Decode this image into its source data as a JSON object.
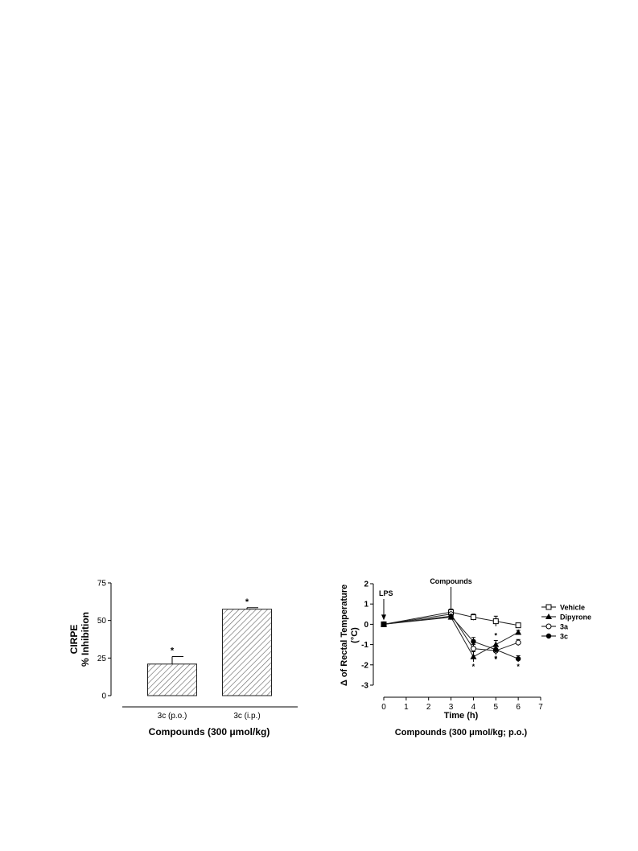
{
  "chart_data": [
    {
      "type": "bar",
      "categories": [
        "3c (p.o.)",
        "3c (i.p.)"
      ],
      "values": [
        21,
        57.5
      ],
      "errors": [
        5,
        1
      ],
      "significance": [
        "*",
        "*"
      ],
      "ylabel_line1": "CIRPE",
      "ylabel_line2": "% Inhibition",
      "xlabel": "Compounds (300 μmol/kg)",
      "ylim": [
        0,
        75
      ],
      "yticks": [
        0,
        25,
        50,
        75
      ],
      "fill_pattern": "diagonal-hatch",
      "grid": false
    },
    {
      "type": "line",
      "ylabel_line1": "Δ of Rectal Temperature",
      "ylabel_line2": "(°C)",
      "xlabel": "Time (h)",
      "xlabel2": "Compounds (300 μmol/kg; p.o.)",
      "xlim": [
        0,
        7
      ],
      "ylim": [
        -3,
        2
      ],
      "xticks": [
        0,
        1,
        2,
        3,
        4,
        5,
        6,
        7
      ],
      "yticks": [
        2,
        1,
        0,
        -1,
        -2,
        -3
      ],
      "annotations": [
        {
          "text": "LPS",
          "x": 0
        },
        {
          "text": "Compounds",
          "x": 3
        }
      ],
      "legend_position": "right",
      "grid": false,
      "series": [
        {
          "name": "Vehicle",
          "marker": "square-open",
          "x": [
            0,
            3,
            4,
            5,
            6
          ],
          "y": [
            0,
            0.6,
            0.35,
            0.15,
            -0.05
          ],
          "err": [
            0,
            0.15,
            0.15,
            0.25,
            0.1
          ],
          "sig": [
            "",
            "",
            "",
            "",
            ""
          ]
        },
        {
          "name": "Dipyrone",
          "marker": "triangle-filled",
          "x": [
            0,
            3,
            4,
            5,
            6
          ],
          "y": [
            0,
            0.35,
            -1.6,
            -1.0,
            -0.4
          ],
          "err": [
            0,
            0.1,
            0.25,
            0.2,
            0.1
          ],
          "sig": [
            "",
            "",
            "*",
            "*",
            ""
          ]
        },
        {
          "name": "3a",
          "marker": "circle-open",
          "x": [
            0,
            3,
            4,
            5,
            6
          ],
          "y": [
            0,
            0.5,
            -1.2,
            -1.3,
            -0.9
          ],
          "err": [
            0,
            0.1,
            0.2,
            0.2,
            0.15
          ],
          "sig": [
            "",
            "",
            "*",
            "*",
            "*"
          ]
        },
        {
          "name": "3c",
          "marker": "circle-filled",
          "x": [
            0,
            3,
            4,
            5,
            6
          ],
          "y": [
            0,
            0.4,
            -0.85,
            -1.25,
            -1.7
          ],
          "err": [
            0,
            0.1,
            0.2,
            0.2,
            0.15
          ],
          "sig": [
            "",
            "",
            "",
            "*",
            "*"
          ]
        }
      ]
    }
  ]
}
